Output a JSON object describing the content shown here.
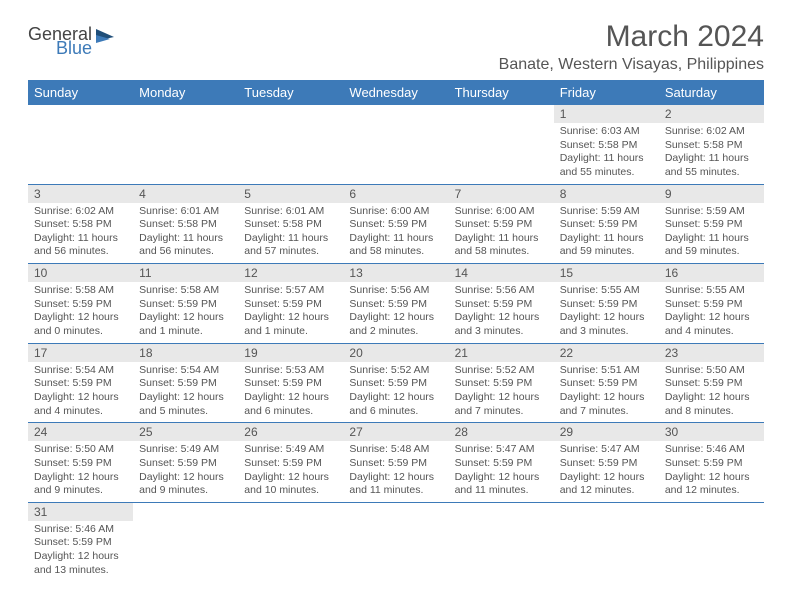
{
  "logo": {
    "text1": "General",
    "text2": "Blue"
  },
  "title": "March 2024",
  "location": "Banate, Western Visayas, Philippines",
  "colors": {
    "header_bg": "#3d7ab8",
    "header_fg": "#ffffff",
    "daynum_bg": "#e8e8e8",
    "text": "#555555",
    "row_border": "#3d7ab8",
    "logo_blue": "#3d7ab8",
    "page_bg": "#ffffff"
  },
  "weekdays": [
    "Sunday",
    "Monday",
    "Tuesday",
    "Wednesday",
    "Thursday",
    "Friday",
    "Saturday"
  ],
  "weeks": [
    [
      {
        "day": "",
        "sunrise": "",
        "sunset": "",
        "daylight": ""
      },
      {
        "day": "",
        "sunrise": "",
        "sunset": "",
        "daylight": ""
      },
      {
        "day": "",
        "sunrise": "",
        "sunset": "",
        "daylight": ""
      },
      {
        "day": "",
        "sunrise": "",
        "sunset": "",
        "daylight": ""
      },
      {
        "day": "",
        "sunrise": "",
        "sunset": "",
        "daylight": ""
      },
      {
        "day": "1",
        "sunrise": "Sunrise: 6:03 AM",
        "sunset": "Sunset: 5:58 PM",
        "daylight": "Daylight: 11 hours and 55 minutes."
      },
      {
        "day": "2",
        "sunrise": "Sunrise: 6:02 AM",
        "sunset": "Sunset: 5:58 PM",
        "daylight": "Daylight: 11 hours and 55 minutes."
      }
    ],
    [
      {
        "day": "3",
        "sunrise": "Sunrise: 6:02 AM",
        "sunset": "Sunset: 5:58 PM",
        "daylight": "Daylight: 11 hours and 56 minutes."
      },
      {
        "day": "4",
        "sunrise": "Sunrise: 6:01 AM",
        "sunset": "Sunset: 5:58 PM",
        "daylight": "Daylight: 11 hours and 56 minutes."
      },
      {
        "day": "5",
        "sunrise": "Sunrise: 6:01 AM",
        "sunset": "Sunset: 5:58 PM",
        "daylight": "Daylight: 11 hours and 57 minutes."
      },
      {
        "day": "6",
        "sunrise": "Sunrise: 6:00 AM",
        "sunset": "Sunset: 5:59 PM",
        "daylight": "Daylight: 11 hours and 58 minutes."
      },
      {
        "day": "7",
        "sunrise": "Sunrise: 6:00 AM",
        "sunset": "Sunset: 5:59 PM",
        "daylight": "Daylight: 11 hours and 58 minutes."
      },
      {
        "day": "8",
        "sunrise": "Sunrise: 5:59 AM",
        "sunset": "Sunset: 5:59 PM",
        "daylight": "Daylight: 11 hours and 59 minutes."
      },
      {
        "day": "9",
        "sunrise": "Sunrise: 5:59 AM",
        "sunset": "Sunset: 5:59 PM",
        "daylight": "Daylight: 11 hours and 59 minutes."
      }
    ],
    [
      {
        "day": "10",
        "sunrise": "Sunrise: 5:58 AM",
        "sunset": "Sunset: 5:59 PM",
        "daylight": "Daylight: 12 hours and 0 minutes."
      },
      {
        "day": "11",
        "sunrise": "Sunrise: 5:58 AM",
        "sunset": "Sunset: 5:59 PM",
        "daylight": "Daylight: 12 hours and 1 minute."
      },
      {
        "day": "12",
        "sunrise": "Sunrise: 5:57 AM",
        "sunset": "Sunset: 5:59 PM",
        "daylight": "Daylight: 12 hours and 1 minute."
      },
      {
        "day": "13",
        "sunrise": "Sunrise: 5:56 AM",
        "sunset": "Sunset: 5:59 PM",
        "daylight": "Daylight: 12 hours and 2 minutes."
      },
      {
        "day": "14",
        "sunrise": "Sunrise: 5:56 AM",
        "sunset": "Sunset: 5:59 PM",
        "daylight": "Daylight: 12 hours and 3 minutes."
      },
      {
        "day": "15",
        "sunrise": "Sunrise: 5:55 AM",
        "sunset": "Sunset: 5:59 PM",
        "daylight": "Daylight: 12 hours and 3 minutes."
      },
      {
        "day": "16",
        "sunrise": "Sunrise: 5:55 AM",
        "sunset": "Sunset: 5:59 PM",
        "daylight": "Daylight: 12 hours and 4 minutes."
      }
    ],
    [
      {
        "day": "17",
        "sunrise": "Sunrise: 5:54 AM",
        "sunset": "Sunset: 5:59 PM",
        "daylight": "Daylight: 12 hours and 4 minutes."
      },
      {
        "day": "18",
        "sunrise": "Sunrise: 5:54 AM",
        "sunset": "Sunset: 5:59 PM",
        "daylight": "Daylight: 12 hours and 5 minutes."
      },
      {
        "day": "19",
        "sunrise": "Sunrise: 5:53 AM",
        "sunset": "Sunset: 5:59 PM",
        "daylight": "Daylight: 12 hours and 6 minutes."
      },
      {
        "day": "20",
        "sunrise": "Sunrise: 5:52 AM",
        "sunset": "Sunset: 5:59 PM",
        "daylight": "Daylight: 12 hours and 6 minutes."
      },
      {
        "day": "21",
        "sunrise": "Sunrise: 5:52 AM",
        "sunset": "Sunset: 5:59 PM",
        "daylight": "Daylight: 12 hours and 7 minutes."
      },
      {
        "day": "22",
        "sunrise": "Sunrise: 5:51 AM",
        "sunset": "Sunset: 5:59 PM",
        "daylight": "Daylight: 12 hours and 7 minutes."
      },
      {
        "day": "23",
        "sunrise": "Sunrise: 5:50 AM",
        "sunset": "Sunset: 5:59 PM",
        "daylight": "Daylight: 12 hours and 8 minutes."
      }
    ],
    [
      {
        "day": "24",
        "sunrise": "Sunrise: 5:50 AM",
        "sunset": "Sunset: 5:59 PM",
        "daylight": "Daylight: 12 hours and 9 minutes."
      },
      {
        "day": "25",
        "sunrise": "Sunrise: 5:49 AM",
        "sunset": "Sunset: 5:59 PM",
        "daylight": "Daylight: 12 hours and 9 minutes."
      },
      {
        "day": "26",
        "sunrise": "Sunrise: 5:49 AM",
        "sunset": "Sunset: 5:59 PM",
        "daylight": "Daylight: 12 hours and 10 minutes."
      },
      {
        "day": "27",
        "sunrise": "Sunrise: 5:48 AM",
        "sunset": "Sunset: 5:59 PM",
        "daylight": "Daylight: 12 hours and 11 minutes."
      },
      {
        "day": "28",
        "sunrise": "Sunrise: 5:47 AM",
        "sunset": "Sunset: 5:59 PM",
        "daylight": "Daylight: 12 hours and 11 minutes."
      },
      {
        "day": "29",
        "sunrise": "Sunrise: 5:47 AM",
        "sunset": "Sunset: 5:59 PM",
        "daylight": "Daylight: 12 hours and 12 minutes."
      },
      {
        "day": "30",
        "sunrise": "Sunrise: 5:46 AM",
        "sunset": "Sunset: 5:59 PM",
        "daylight": "Daylight: 12 hours and 12 minutes."
      }
    ],
    [
      {
        "day": "31",
        "sunrise": "Sunrise: 5:46 AM",
        "sunset": "Sunset: 5:59 PM",
        "daylight": "Daylight: 12 hours and 13 minutes."
      },
      {
        "day": "",
        "sunrise": "",
        "sunset": "",
        "daylight": ""
      },
      {
        "day": "",
        "sunrise": "",
        "sunset": "",
        "daylight": ""
      },
      {
        "day": "",
        "sunrise": "",
        "sunset": "",
        "daylight": ""
      },
      {
        "day": "",
        "sunrise": "",
        "sunset": "",
        "daylight": ""
      },
      {
        "day": "",
        "sunrise": "",
        "sunset": "",
        "daylight": ""
      },
      {
        "day": "",
        "sunrise": "",
        "sunset": "",
        "daylight": ""
      }
    ]
  ]
}
